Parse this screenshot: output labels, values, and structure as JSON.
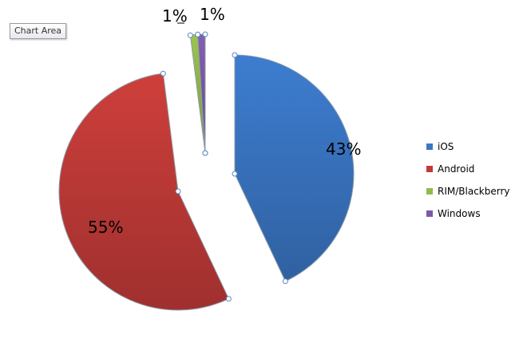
{
  "tooltip": {
    "label": "Chart Area"
  },
  "chart_data": {
    "type": "pie",
    "exploded": true,
    "categories": [
      "iOS",
      "Android",
      "RIM/Blackberry",
      "Windows"
    ],
    "values": [
      43,
      55,
      1,
      1
    ],
    "data_labels": [
      "43%",
      "55%",
      "1%",
      "1%"
    ],
    "colors": [
      "#3a76c4",
      "#c23b38",
      "#92ba4a",
      "#7b5aa8"
    ],
    "legend_position": "right",
    "title": ""
  }
}
